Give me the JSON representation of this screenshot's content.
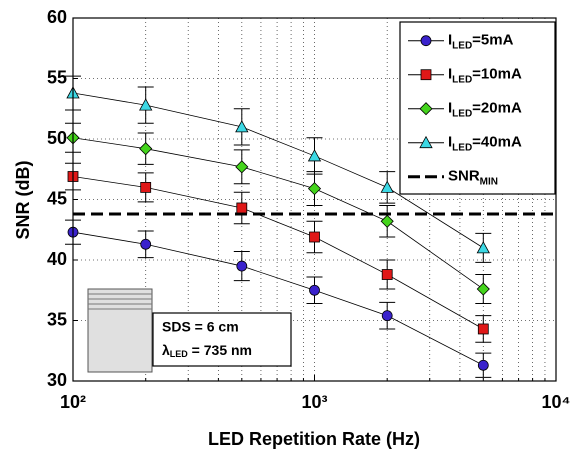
{
  "chart_data": {
    "type": "line",
    "xlabel": "LED Repetition Rate (Hz)",
    "ylabel": "SNR (dB)",
    "xscale": "log",
    "x": [
      100,
      200,
      500,
      1000,
      2000,
      5000
    ],
    "xlim": [
      100,
      10000
    ],
    "xticks": [
      {
        "value": 100,
        "label": "10²"
      },
      {
        "value": 1000,
        "label": "10³"
      },
      {
        "value": 10000,
        "label": "10⁴"
      }
    ],
    "xminorticks": [
      200,
      300,
      400,
      500,
      600,
      700,
      800,
      900,
      2000,
      3000,
      4000,
      5000,
      6000,
      7000,
      8000,
      9000
    ],
    "ylim": [
      30,
      60
    ],
    "yticks": [
      30,
      35,
      40,
      45,
      50,
      55,
      60
    ],
    "grid": true,
    "legend": "upper right",
    "series": [
      {
        "name": {
          "main": "I",
          "sub": "LED",
          "rest": "=5mA"
        },
        "color": "#3a22cc",
        "marker": "circle",
        "values": [
          42.3,
          41.3,
          39.5,
          37.5,
          35.4,
          31.3
        ],
        "errors": [
          1.0,
          1.1,
          1.2,
          1.1,
          1.1,
          1.0
        ]
      },
      {
        "name": {
          "main": "I",
          "sub": "LED",
          "rest": "=10mA"
        },
        "color": "#e01818",
        "marker": "square",
        "values": [
          46.9,
          46.0,
          44.3,
          41.9,
          38.8,
          34.3
        ],
        "errors": [
          1.1,
          1.2,
          1.3,
          1.3,
          1.2,
          1.1
        ]
      },
      {
        "name": {
          "main": "I",
          "sub": "LED",
          "rest": "=20mA"
        },
        "color": "#44d41c",
        "marker": "diamond",
        "values": [
          50.1,
          49.2,
          47.7,
          45.9,
          43.2,
          37.6
        ],
        "errors": [
          1.2,
          1.3,
          1.4,
          1.4,
          1.3,
          1.2
        ]
      },
      {
        "name": {
          "main": "I",
          "sub": "LED",
          "rest": "=40mA"
        },
        "color": "#3cd8e4",
        "marker": "triangle",
        "values": [
          53.8,
          52.8,
          51.0,
          48.6,
          46.0,
          41.0
        ],
        "errors": [
          1.4,
          1.5,
          1.5,
          1.5,
          1.3,
          1.2
        ]
      }
    ],
    "hlines": [
      {
        "value": 43.8,
        "name": {
          "main": "SNR",
          "sub": "MIN"
        }
      }
    ],
    "annotation": {
      "line1": "SDS = 6 cm",
      "line2": {
        "main": "λ",
        "sub": "LED",
        "rest": " = 735 nm"
      }
    }
  }
}
